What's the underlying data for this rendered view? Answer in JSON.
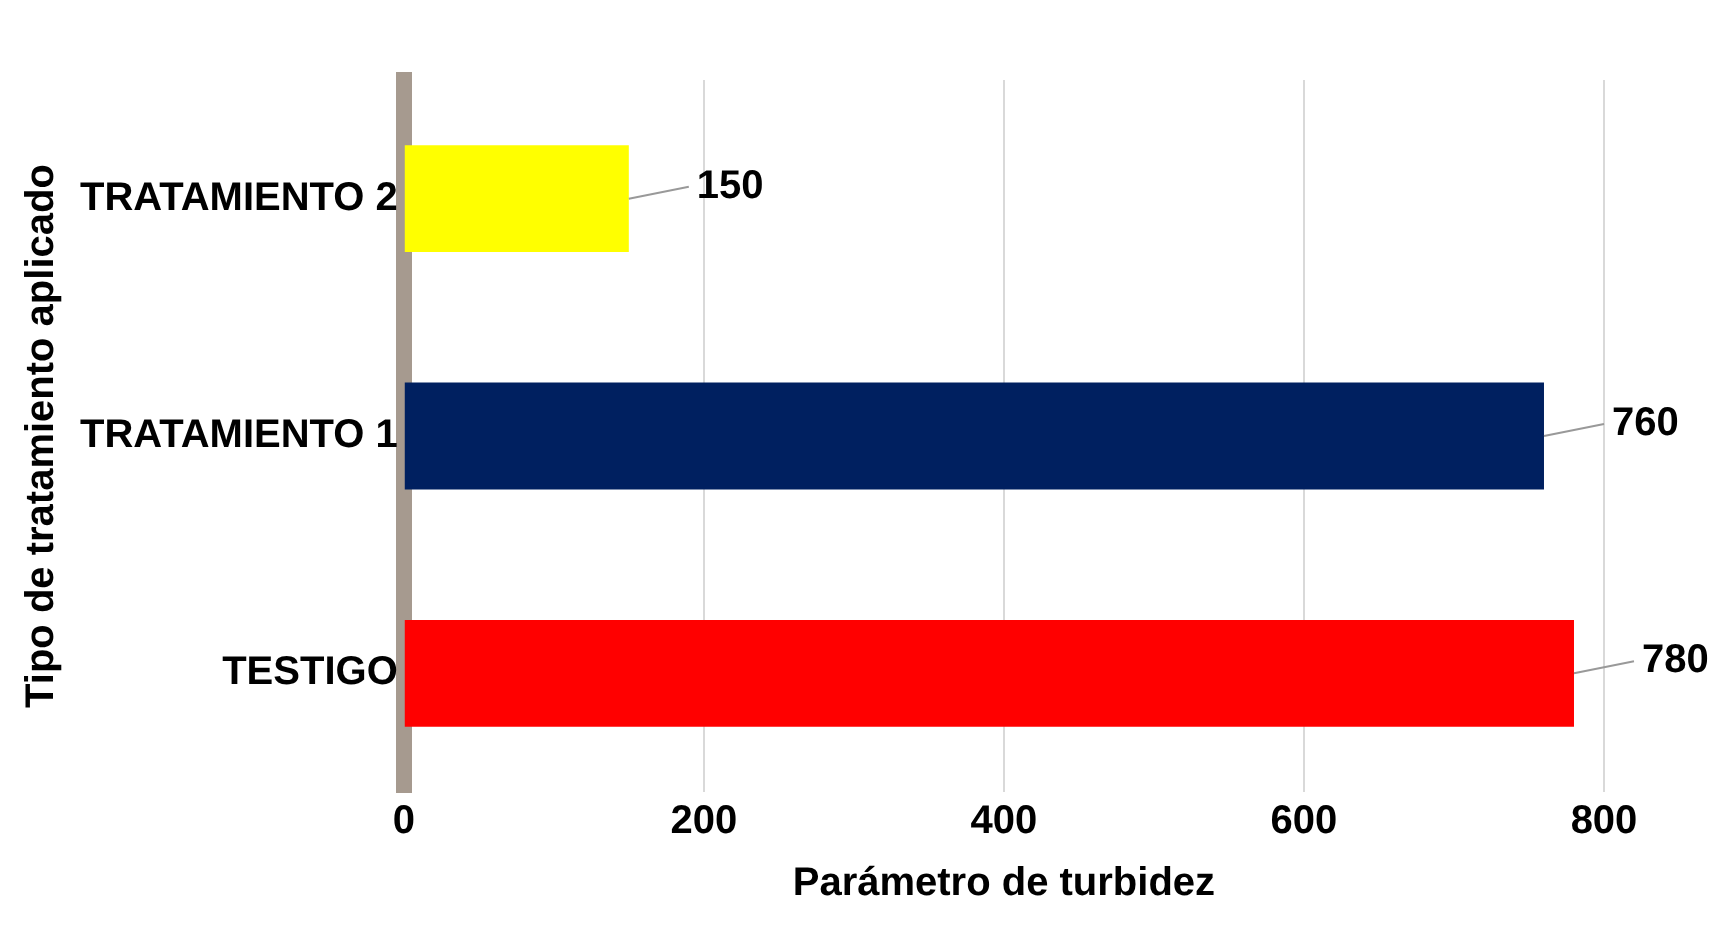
{
  "chart_data": {
    "type": "bar",
    "orientation": "horizontal",
    "categories": [
      "TRATAMIENTO 2",
      "TRATAMIENTO 1",
      "TESTIGO"
    ],
    "values": [
      150,
      760,
      780
    ],
    "colors": [
      "#ffff00",
      "#002060",
      "#ff0000"
    ],
    "xlim": [
      0,
      800
    ],
    "xticks": [
      0,
      200,
      400,
      600,
      800
    ],
    "xlabel": "Parámetro de turbidez",
    "ylabel": "Tipo de tratamiento aplicado",
    "grid": "x",
    "data_labels": true,
    "legend": false
  }
}
